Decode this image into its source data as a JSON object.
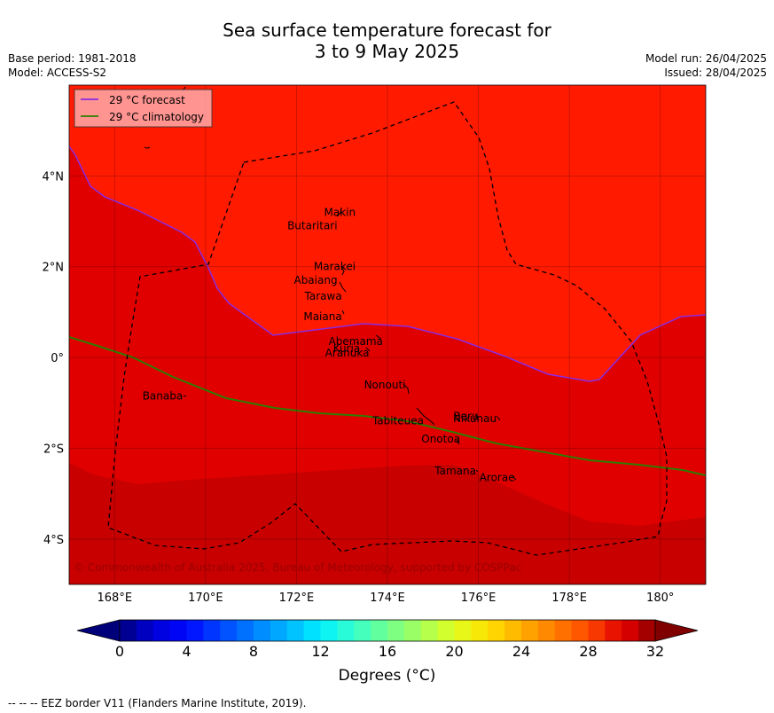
{
  "title": {
    "line1": "Sea surface temperature forecast for",
    "line2": "3 to 9 May 2025"
  },
  "meta": {
    "base_period": "Base period: 1981-2018",
    "model": "Model: ACCESS-S2",
    "model_run": "Model run: 26/04/2025",
    "issued": "Issued: 28/04/2025"
  },
  "legend": {
    "forecast": "29 °C  forecast",
    "climatology": "29 °C  climatology",
    "forecast_color": "#8a2be2",
    "climatology_color": "#2e7d00"
  },
  "map": {
    "lon_range": [
      167,
      181
    ],
    "lat_range": [
      -5,
      6
    ],
    "lon_ticks": [
      "168°E",
      "170°E",
      "172°E",
      "174°E",
      "176°E",
      "178°E",
      "180°"
    ],
    "lat_ticks": [
      "4°N",
      "2°N",
      "0°",
      "2°S",
      "4°S"
    ],
    "colors": {
      "t28_29": "#e00000",
      "t29_30": "#ff1a00",
      "t27_28": "#c80000"
    },
    "copyright": "© Commonwealth of Australia 2025, Bureau of Meteorology, supported by COSPPac",
    "places": [
      {
        "name": "Makin",
        "lon": 173.3,
        "lat": 3.2
      },
      {
        "name": "Butaritari",
        "lon": 172.9,
        "lat": 2.9
      },
      {
        "name": "Marakei",
        "lon": 173.3,
        "lat": 2.0
      },
      {
        "name": "Abaiang",
        "lon": 172.9,
        "lat": 1.7
      },
      {
        "name": "Tarawa",
        "lon": 173.0,
        "lat": 1.35
      },
      {
        "name": "Maiana",
        "lon": 173.0,
        "lat": 0.9
      },
      {
        "name": "Abemama",
        "lon": 173.9,
        "lat": 0.35
      },
      {
        "name": "Kuria",
        "lon": 173.4,
        "lat": 0.2
      },
      {
        "name": "Aranuka",
        "lon": 173.6,
        "lat": 0.1
      },
      {
        "name": "Banaba",
        "lon": 169.5,
        "lat": -0.85
      },
      {
        "name": "Nonouti",
        "lon": 174.4,
        "lat": -0.6
      },
      {
        "name": "Beru",
        "lon": 176.0,
        "lat": -1.3
      },
      {
        "name": "Tabiteuea",
        "lon": 174.8,
        "lat": -1.4
      },
      {
        "name": "Nikunau",
        "lon": 176.4,
        "lat": -1.35
      },
      {
        "name": "Onotoa",
        "lon": 175.6,
        "lat": -1.8
      },
      {
        "name": "Tamana",
        "lon": 175.95,
        "lat": -2.5
      },
      {
        "name": "Arorae",
        "lon": 176.8,
        "lat": -2.65
      }
    ]
  },
  "colorbar": {
    "min": 0,
    "max": 32,
    "step": 1,
    "ticks": [
      "0",
      "4",
      "8",
      "12",
      "16",
      "20",
      "24",
      "28",
      "32"
    ],
    "label": "Degrees (°C)"
  },
  "footer": "--  --  -- EEZ border V11 (Flanders Marine Institute, 2019)."
}
